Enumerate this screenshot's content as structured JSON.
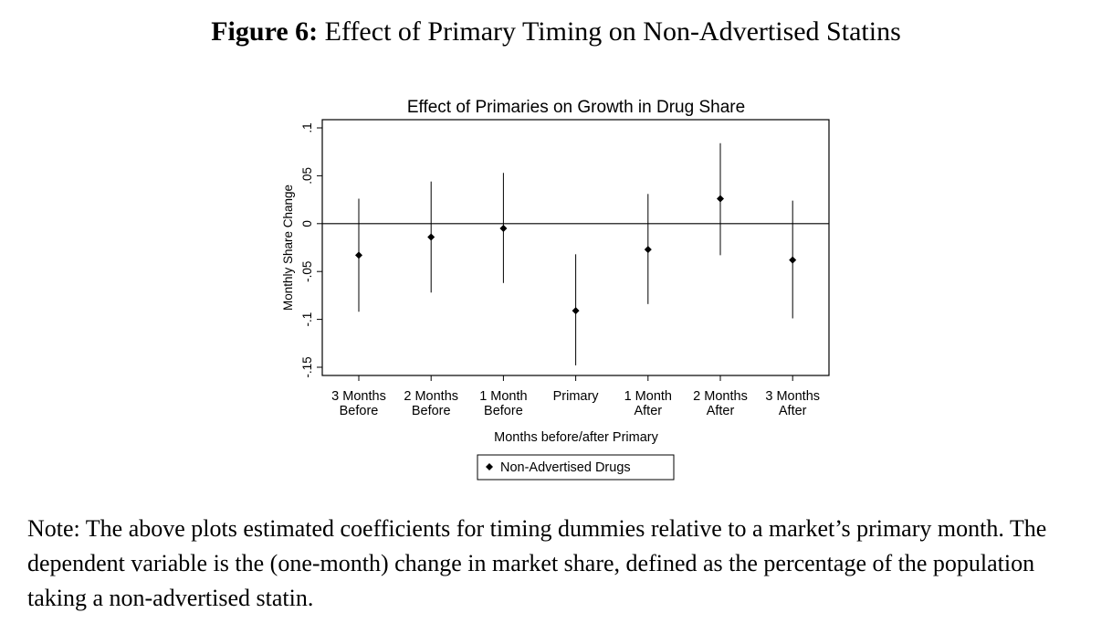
{
  "figure": {
    "label": "Figure 6:",
    "title": "Effect of Primary Timing on Non-Advertised Statins"
  },
  "chart_data": {
    "type": "scatter",
    "title": "Effect of Primaries on Growth in Drug Share",
    "xlabel": "Months before/after Primary",
    "ylabel": "Monthly Share Change",
    "ylim": [
      -0.15,
      0.1
    ],
    "yticks": [
      {
        "value": 0.1,
        "label": ".1"
      },
      {
        "value": 0.05,
        "label": ".05"
      },
      {
        "value": 0,
        "label": "0"
      },
      {
        "value": -0.05,
        "label": "-.05"
      },
      {
        "value": -0.1,
        "label": "-.1"
      },
      {
        "value": -0.15,
        "label": "-.15"
      }
    ],
    "categories": [
      [
        "3 Months",
        "Before"
      ],
      [
        "2 Months",
        "Before"
      ],
      [
        "1 Month",
        "Before"
      ],
      [
        "Primary"
      ],
      [
        "1 Month",
        "After"
      ],
      [
        "2 Months",
        "After"
      ],
      [
        "3 Months",
        "After"
      ]
    ],
    "series": [
      {
        "name": "Non-Advertised Drugs",
        "values": [
          -0.033,
          -0.014,
          -0.005,
          -0.091,
          -0.027,
          0.026,
          -0.038
        ],
        "ci_low": [
          -0.092,
          -0.072,
          -0.062,
          -0.148,
          -0.084,
          -0.033,
          -0.099
        ],
        "ci_high": [
          0.026,
          0.044,
          0.053,
          -0.032,
          0.031,
          0.084,
          0.024
        ]
      }
    ],
    "reference_line": 0,
    "legend_position": "bottom"
  },
  "note": "Note: The above plots estimated coefficients for timing dummies relative to a market’s primary month. The dependent variable is the (one-month) change in market share, defined as the percentage of the population taking a non-advertised statin."
}
